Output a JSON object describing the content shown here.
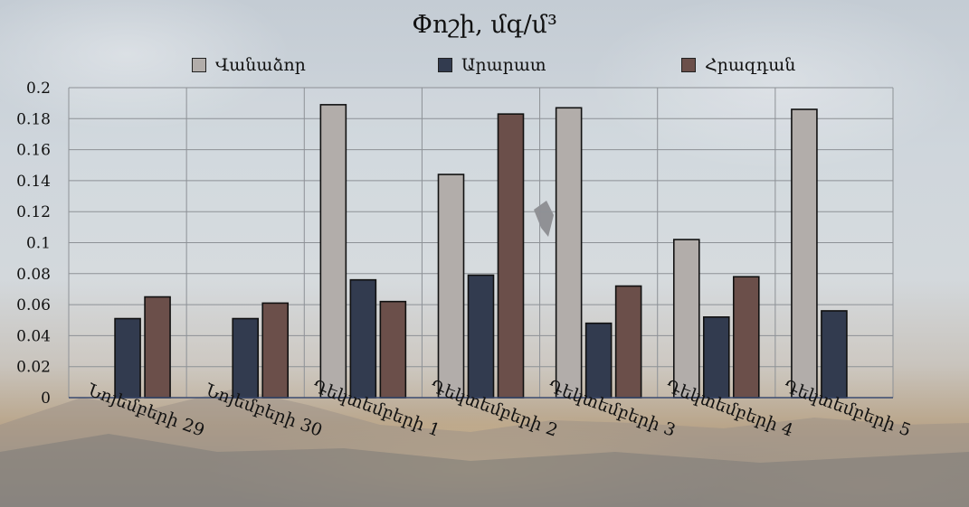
{
  "chart_data": {
    "type": "bar",
    "title": "Փոշի, մգ/մ³",
    "categories": [
      "Նոյեմբերի 29",
      "Նոյեմբերի 30",
      "Դեկտեմբերի 1",
      "Դեկտեմբերի 2",
      "Դեկտեմբերի 3",
      "Դեկտեմբերի 4",
      "Դեկտեմբերի 5"
    ],
    "series": [
      {
        "name": "Վանաձոր",
        "color": "#b2adaa",
        "values": [
          null,
          null,
          0.189,
          0.144,
          0.187,
          0.102,
          0.186
        ]
      },
      {
        "name": "Արարատ",
        "color": "#323b4f",
        "values": [
          0.051,
          0.051,
          0.076,
          0.079,
          0.048,
          0.052,
          0.056
        ]
      },
      {
        "name": "Հրազդան",
        "color": "#6b4f4a",
        "values": [
          0.065,
          0.061,
          0.062,
          0.183,
          0.072,
          0.078,
          null
        ]
      }
    ],
    "yticks": [
      "0",
      "0.02",
      "0.04",
      "0.06",
      "0.08",
      "0.1",
      "0.12",
      "0.14",
      "0.16",
      "0.18",
      "0.2"
    ],
    "ylim": [
      0,
      0.2
    ],
    "grid": true,
    "legend_position": "top"
  }
}
